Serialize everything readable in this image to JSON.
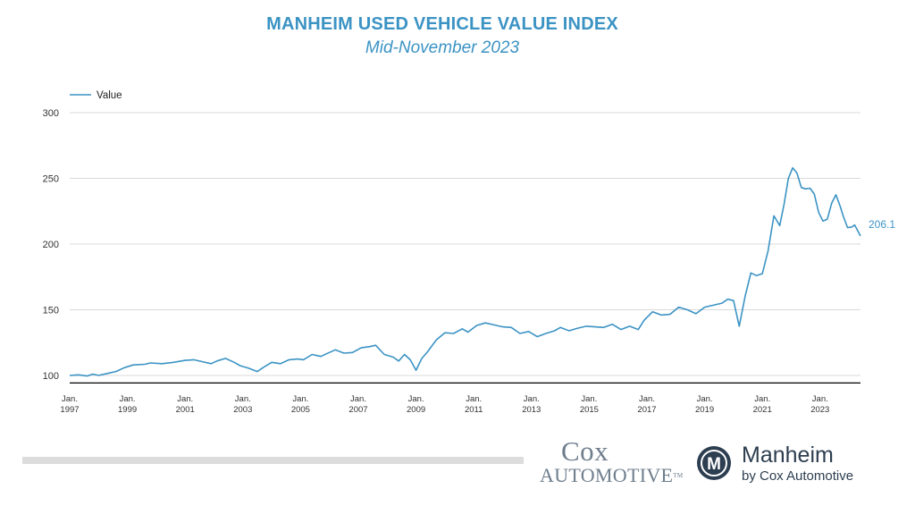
{
  "header": {
    "title": "MANHEIM USED VEHICLE VALUE INDEX",
    "subtitle": "Mid-November 2023"
  },
  "chart_data": {
    "type": "line",
    "title": "MANHEIM USED VEHICLE VALUE INDEX",
    "subtitle": "Mid-November 2023",
    "xlabel": "",
    "ylabel": "",
    "ylim": [
      95,
      300
    ],
    "y_ticks": [
      100,
      150,
      200,
      250,
      300
    ],
    "x_ticks": [
      {
        "t": 1997.0,
        "line1": "Jan.",
        "line2": "1997"
      },
      {
        "t": 1999.0,
        "line1": "Jan.",
        "line2": "1999"
      },
      {
        "t": 2001.0,
        "line1": "Jan.",
        "line2": "2001"
      },
      {
        "t": 2003.0,
        "line1": "Jan.",
        "line2": "2003"
      },
      {
        "t": 2005.0,
        "line1": "Jan.",
        "line2": "2005"
      },
      {
        "t": 2007.0,
        "line1": "Jan.",
        "line2": "2007"
      },
      {
        "t": 2009.0,
        "line1": "Jan.",
        "line2": "2009"
      },
      {
        "t": 2011.0,
        "line1": "Jan.",
        "line2": "2011"
      },
      {
        "t": 2013.0,
        "line1": "Jan.",
        "line2": "2013"
      },
      {
        "t": 2015.0,
        "line1": "Jan.",
        "line2": "2015"
      },
      {
        "t": 2017.0,
        "line1": "Jan.",
        "line2": "2017"
      },
      {
        "t": 2019.0,
        "line1": "Jan.",
        "line2": "2019"
      },
      {
        "t": 2021.0,
        "line1": "Jan.",
        "line2": "2021"
      },
      {
        "t": 2023.0,
        "line1": "Jan.",
        "line2": "2023"
      }
    ],
    "grid": true,
    "legend_position": "top-left",
    "series": [
      {
        "name": "Value",
        "color": "#3b93c4",
        "points": [
          [
            1997.0,
            100.0
          ],
          [
            1997.3,
            100.5
          ],
          [
            1997.6,
            99.6
          ],
          [
            1997.8,
            101.0
          ],
          [
            1998.0,
            100.1
          ],
          [
            1998.3,
            101.5
          ],
          [
            1998.6,
            103.0
          ],
          [
            1998.9,
            106.0
          ],
          [
            1999.2,
            108.0
          ],
          [
            1999.6,
            108.5
          ],
          [
            1999.8,
            109.5
          ],
          [
            2000.2,
            109.0
          ],
          [
            2000.6,
            110.0
          ],
          [
            2001.0,
            111.5
          ],
          [
            2001.3,
            112.0
          ],
          [
            2001.6,
            110.5
          ],
          [
            2001.9,
            109.0
          ],
          [
            2002.1,
            111.0
          ],
          [
            2002.4,
            113.0
          ],
          [
            2002.7,
            110.0
          ],
          [
            2002.9,
            107.5
          ],
          [
            2003.2,
            105.5
          ],
          [
            2003.5,
            103.0
          ],
          [
            2003.7,
            106.0
          ],
          [
            2004.0,
            110.0
          ],
          [
            2004.3,
            109.0
          ],
          [
            2004.6,
            112.0
          ],
          [
            2004.9,
            112.5
          ],
          [
            2005.1,
            112.0
          ],
          [
            2005.4,
            116.0
          ],
          [
            2005.7,
            114.5
          ],
          [
            2005.9,
            116.5
          ],
          [
            2006.2,
            119.5
          ],
          [
            2006.5,
            117.0
          ],
          [
            2006.8,
            117.5
          ],
          [
            2007.1,
            121.0
          ],
          [
            2007.4,
            122.0
          ],
          [
            2007.6,
            123.0
          ],
          [
            2007.9,
            116.0
          ],
          [
            2008.2,
            114.0
          ],
          [
            2008.4,
            111.0
          ],
          [
            2008.6,
            116.0
          ],
          [
            2008.8,
            112.0
          ],
          [
            2009.0,
            104.0
          ],
          [
            2009.2,
            113.0
          ],
          [
            2009.4,
            118.0
          ],
          [
            2009.7,
            127.0
          ],
          [
            2010.0,
            132.5
          ],
          [
            2010.3,
            132.0
          ],
          [
            2010.6,
            135.5
          ],
          [
            2010.8,
            133.0
          ],
          [
            2011.1,
            138.0
          ],
          [
            2011.4,
            140.0
          ],
          [
            2011.7,
            138.5
          ],
          [
            2012.0,
            137.0
          ],
          [
            2012.3,
            136.5
          ],
          [
            2012.6,
            132.0
          ],
          [
            2012.9,
            133.5
          ],
          [
            2013.2,
            129.5
          ],
          [
            2013.5,
            132.0
          ],
          [
            2013.8,
            134.0
          ],
          [
            2014.0,
            136.5
          ],
          [
            2014.3,
            134.0
          ],
          [
            2014.6,
            136.0
          ],
          [
            2014.9,
            137.5
          ],
          [
            2015.2,
            137.0
          ],
          [
            2015.5,
            136.5
          ],
          [
            2015.8,
            139.0
          ],
          [
            2016.1,
            135.0
          ],
          [
            2016.4,
            137.5
          ],
          [
            2016.7,
            135.0
          ],
          [
            2016.9,
            142.0
          ],
          [
            2017.2,
            148.5
          ],
          [
            2017.5,
            146.0
          ],
          [
            2017.8,
            146.5
          ],
          [
            2018.1,
            152.0
          ],
          [
            2018.4,
            150.0
          ],
          [
            2018.7,
            147.0
          ],
          [
            2019.0,
            152.0
          ],
          [
            2019.3,
            153.5
          ],
          [
            2019.6,
            155.0
          ],
          [
            2019.8,
            158.0
          ],
          [
            2020.0,
            157.0
          ],
          [
            2020.2,
            137.5
          ],
          [
            2020.4,
            160.0
          ],
          [
            2020.6,
            178.0
          ],
          [
            2020.8,
            176.0
          ],
          [
            2021.0,
            177.5
          ],
          [
            2021.2,
            195.0
          ],
          [
            2021.4,
            221.5
          ],
          [
            2021.6,
            214.0
          ],
          [
            2021.75,
            230.0
          ],
          [
            2021.9,
            250.0
          ],
          [
            2022.05,
            258.0
          ],
          [
            2022.2,
            254.0
          ],
          [
            2022.35,
            243.0
          ],
          [
            2022.5,
            242.0
          ],
          [
            2022.65,
            242.5
          ],
          [
            2022.8,
            238.0
          ],
          [
            2022.95,
            224.0
          ],
          [
            2023.1,
            217.5
          ],
          [
            2023.25,
            219.0
          ],
          [
            2023.4,
            231.0
          ],
          [
            2023.55,
            237.5
          ],
          [
            2023.7,
            228.5
          ],
          [
            2023.8,
            221.5
          ],
          [
            2023.95,
            212.5
          ],
          [
            2024.1,
            213.0
          ],
          [
            2024.2,
            214.5
          ],
          [
            2024.4,
            206.1
          ]
        ],
        "end_label": "206.1"
      }
    ]
  },
  "footer": {
    "cox_line1": "Cox",
    "cox_line2": "AUTOMOTIVE",
    "cox_tm": "TM",
    "manheim_line1": "Manheim",
    "manheim_line2": "by Cox Automotive",
    "manheim_icon_letter": "M"
  }
}
